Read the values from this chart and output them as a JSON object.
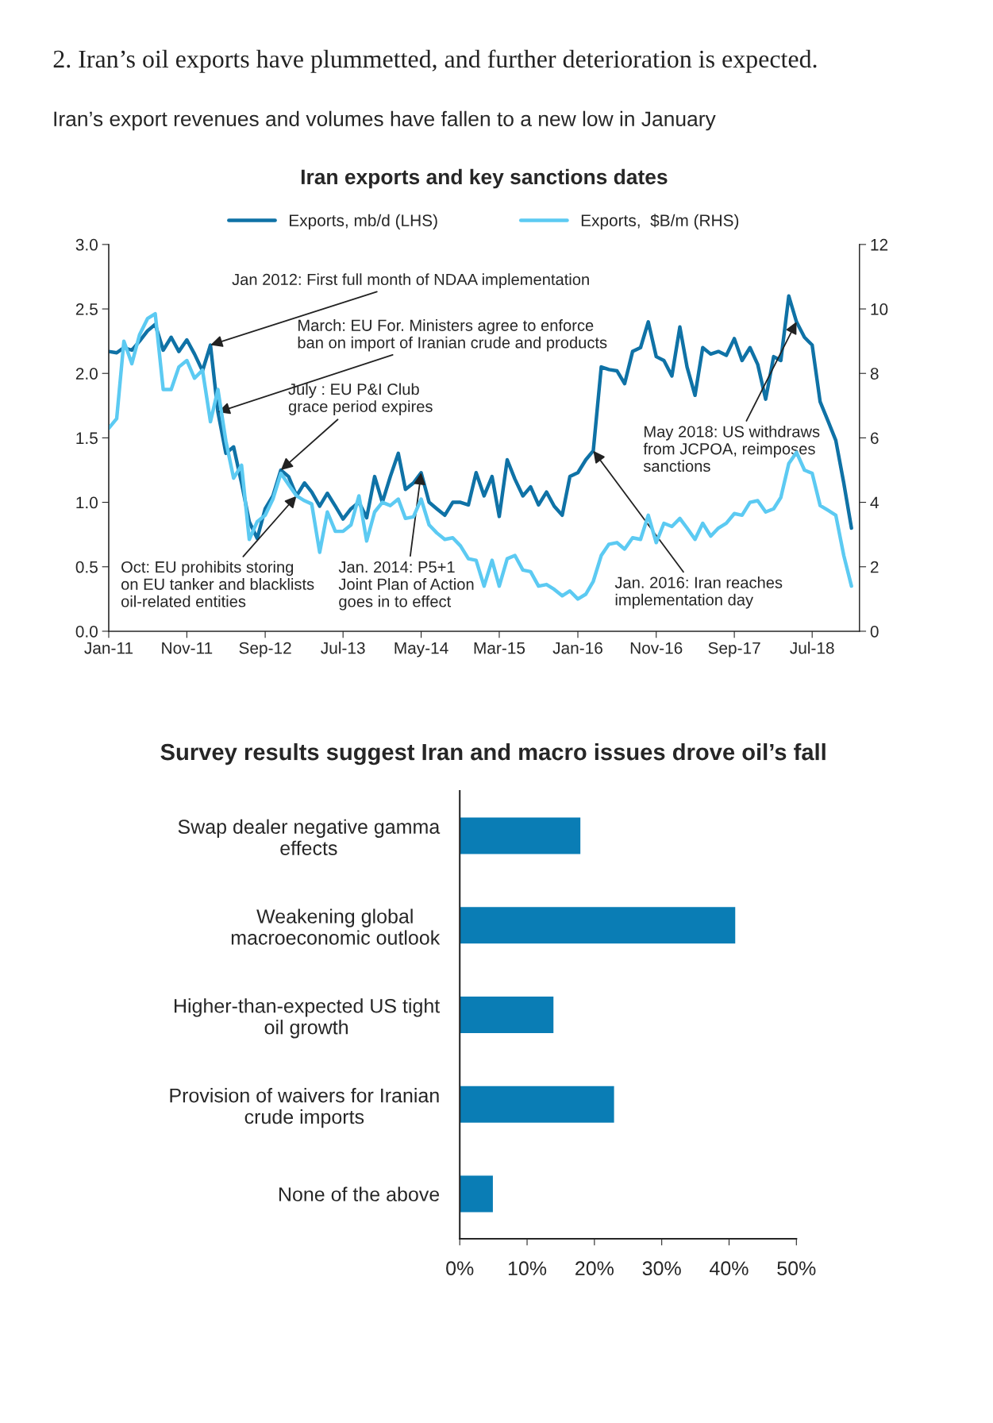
{
  "chart_data": [
    {
      "type": "line",
      "title": "Iran’s export revenues and volumes have fallen to a new low in January",
      "subtitle": "Iran exports and key sanctions dates",
      "x": [
        "2011-01",
        "2011-02",
        "2011-03",
        "2011-04",
        "2011-05",
        "2011-06",
        "2011-07",
        "2011-08",
        "2011-09",
        "2011-10",
        "2011-11",
        "2011-12",
        "2012-01",
        "2012-02",
        "2012-03",
        "2012-04",
        "2012-05",
        "2012-06",
        "2012-07",
        "2012-08",
        "2012-09",
        "2012-10",
        "2012-11",
        "2012-12",
        "2013-01",
        "2013-02",
        "2013-03",
        "2013-04",
        "2013-05",
        "2013-06",
        "2013-07",
        "2013-08",
        "2013-09",
        "2013-10",
        "2013-11",
        "2013-12",
        "2014-01",
        "2014-02",
        "2014-03",
        "2014-04",
        "2014-05",
        "2014-06",
        "2014-07",
        "2014-08",
        "2014-09",
        "2014-10",
        "2014-11",
        "2014-12",
        "2015-01",
        "2015-02",
        "2015-03",
        "2015-04",
        "2015-05",
        "2015-06",
        "2015-07",
        "2015-08",
        "2015-09",
        "2015-10",
        "2015-11",
        "2015-12",
        "2016-01",
        "2016-02",
        "2016-03",
        "2016-04",
        "2016-05",
        "2016-06",
        "2016-07",
        "2016-08",
        "2016-09",
        "2016-10",
        "2016-11",
        "2016-12",
        "2017-01",
        "2017-02",
        "2017-03",
        "2017-04",
        "2017-05",
        "2017-06",
        "2017-07",
        "2017-08",
        "2017-09",
        "2017-10",
        "2017-11",
        "2017-12",
        "2018-01",
        "2018-02",
        "2018-03",
        "2018-04",
        "2018-05",
        "2018-06",
        "2018-07",
        "2018-08",
        "2018-09",
        "2018-10",
        "2018-11",
        "2018-12"
      ],
      "series": [
        {
          "name": "Exports, mb/d (LHS)",
          "color": "#0f72a6",
          "values": [
            2.17,
            2.16,
            2.2,
            2.18,
            2.25,
            2.33,
            2.38,
            2.18,
            2.28,
            2.17,
            2.26,
            2.15,
            2.02,
            2.22,
            1.7,
            1.38,
            1.43,
            1.15,
            0.85,
            0.72,
            0.95,
            1.05,
            1.25,
            1.2,
            1.05,
            1.15,
            1.08,
            0.97,
            1.07,
            0.97,
            0.87,
            0.95,
            1.0,
            0.88,
            1.2,
            1.0,
            1.2,
            1.38,
            1.1,
            1.15,
            1.23,
            1.0,
            0.95,
            0.9,
            1.0,
            1.0,
            0.98,
            1.23,
            1.05,
            1.2,
            0.89,
            1.33,
            1.18,
            1.05,
            1.12,
            0.98,
            1.08,
            0.97,
            0.9,
            1.2,
            1.23,
            1.33,
            1.4,
            2.05,
            2.03,
            2.02,
            1.92,
            2.17,
            2.2,
            2.4,
            2.13,
            2.1,
            1.98,
            2.36,
            2.05,
            1.83,
            2.2,
            2.15,
            2.17,
            2.14,
            2.27,
            2.1,
            2.2,
            2.07,
            1.8,
            2.13,
            2.1,
            2.6,
            2.4,
            2.28,
            2.22,
            1.78,
            1.63,
            1.48,
            1.15,
            0.8
          ]
        },
        {
          "name": "Exports,  $B/m (RHS)",
          "color": "#5ccaf2",
          "axis": "y2",
          "values": [
            6.3,
            6.6,
            9.0,
            8.3,
            9.2,
            9.7,
            9.85,
            7.5,
            7.5,
            8.2,
            8.4,
            7.85,
            8.1,
            6.5,
            7.5,
            5.9,
            4.75,
            5.15,
            2.85,
            3.4,
            3.6,
            4.1,
            4.9,
            4.55,
            4.2,
            4.05,
            3.95,
            2.45,
            3.7,
            3.1,
            3.1,
            3.3,
            4.2,
            2.8,
            3.7,
            4.0,
            3.9,
            4.1,
            3.5,
            3.55,
            4.1,
            3.3,
            3.05,
            2.85,
            2.9,
            2.65,
            2.25,
            2.2,
            1.4,
            2.2,
            1.4,
            2.25,
            2.35,
            1.9,
            1.85,
            1.4,
            1.45,
            1.3,
            1.1,
            1.25,
            1.0,
            1.15,
            1.55,
            2.35,
            2.7,
            2.75,
            2.55,
            2.9,
            2.85,
            3.6,
            2.75,
            3.35,
            3.25,
            3.5,
            3.2,
            2.85,
            3.35,
            2.95,
            3.2,
            3.35,
            3.65,
            3.6,
            4.0,
            4.05,
            3.7,
            3.8,
            4.15,
            5.2,
            5.55,
            5.0,
            4.9,
            3.9,
            3.75,
            3.6,
            2.35,
            1.4
          ]
        }
      ],
      "xlim": [
        "2011-01",
        "2019-01"
      ],
      "xticks": [
        {
          "value": "2011-01",
          "label": "Jan-11"
        },
        {
          "value": "2011-11",
          "label": "Nov-11"
        },
        {
          "value": "2012-09",
          "label": "Sep-12"
        },
        {
          "value": "2013-07",
          "label": "Jul-13"
        },
        {
          "value": "2014-05",
          "label": "May-14"
        },
        {
          "value": "2015-03",
          "label": "Mar-15"
        },
        {
          "value": "2016-01",
          "label": "Jan-16"
        },
        {
          "value": "2016-11",
          "label": "Nov-16"
        },
        {
          "value": "2017-09",
          "label": "Sep-17"
        },
        {
          "value": "2018-07",
          "label": "Jul-18"
        }
      ],
      "ylim": [
        0,
        3
      ],
      "yticks": [
        {
          "value": 0,
          "label": "0.0"
        },
        {
          "value": 0.5,
          "label": "0.5"
        },
        {
          "value": 1,
          "label": "1.0"
        },
        {
          "value": 1.5,
          "label": "1.5"
        },
        {
          "value": 2,
          "label": "2.0"
        },
        {
          "value": 2.5,
          "label": "2.5"
        },
        {
          "value": 3,
          "label": "3.0"
        }
      ],
      "y2lim": [
        0,
        12
      ],
      "y2ticks": [
        0,
        2,
        4,
        6,
        8,
        10,
        12
      ],
      "legend": "top",
      "grid": false,
      "annotations": [
        "2. Iran’s oil exports have plummetted, and further deterioration is expected.",
        {
          "text": "Jan 2012: First full month of NDAA implementation",
          "x": "2012-02",
          "y": 2.22
        },
        {
          "text": "March: EU For. Ministers agree to enforce\nban on import of Iranian crude and products",
          "x": "2012-03",
          "y": 1.7
        },
        {
          "text": "July : EU P&I Club\ngrace period expires",
          "x": "2012-11",
          "y": 1.25
        },
        {
          "text": "Oct: EU prohibits storing\non EU tanker and blacklists\noil-related entities",
          "x": "2013-01",
          "y": 1.05
        },
        {
          "text": "Jan. 2014: P5+1\nJoint Plan of Action\ngoes in to effect",
          "x": "2014-05",
          "y": 1.23
        },
        {
          "text": "Jan. 2016: Iran reaches\nimplementation day",
          "x": "2016-03",
          "y": 1.4
        },
        {
          "text": "May 2018: US withdraws\nfrom JCPOA, reimposes\nsanctions",
          "x": "2018-05",
          "y": 2.4
        }
      ]
    },
    {
      "type": "bar",
      "orientation": "horizontal",
      "title": "Survey results suggest Iran and macro issues drove oil’s fall",
      "categories": [
        "Swap dealer negative gamma\neffects",
        "Weakening global\nmacroeconomic outlook",
        "Higher-than-expected US tight\noil growth",
        "Provision of waivers for Iranian\ncrude imports",
        "None of the above"
      ],
      "values": [
        18,
        41,
        14,
        23,
        5
      ],
      "color": "#0a7db5",
      "xlim": [
        0,
        50
      ],
      "xticks": [
        {
          "value": 0,
          "label": "0%"
        },
        {
          "value": 10,
          "label": "10%"
        },
        {
          "value": 20,
          "label": "20%"
        },
        {
          "value": 30,
          "label": "30%"
        },
        {
          "value": 40,
          "label": "40%"
        },
        {
          "value": 50,
          "label": "50%"
        }
      ]
    }
  ]
}
